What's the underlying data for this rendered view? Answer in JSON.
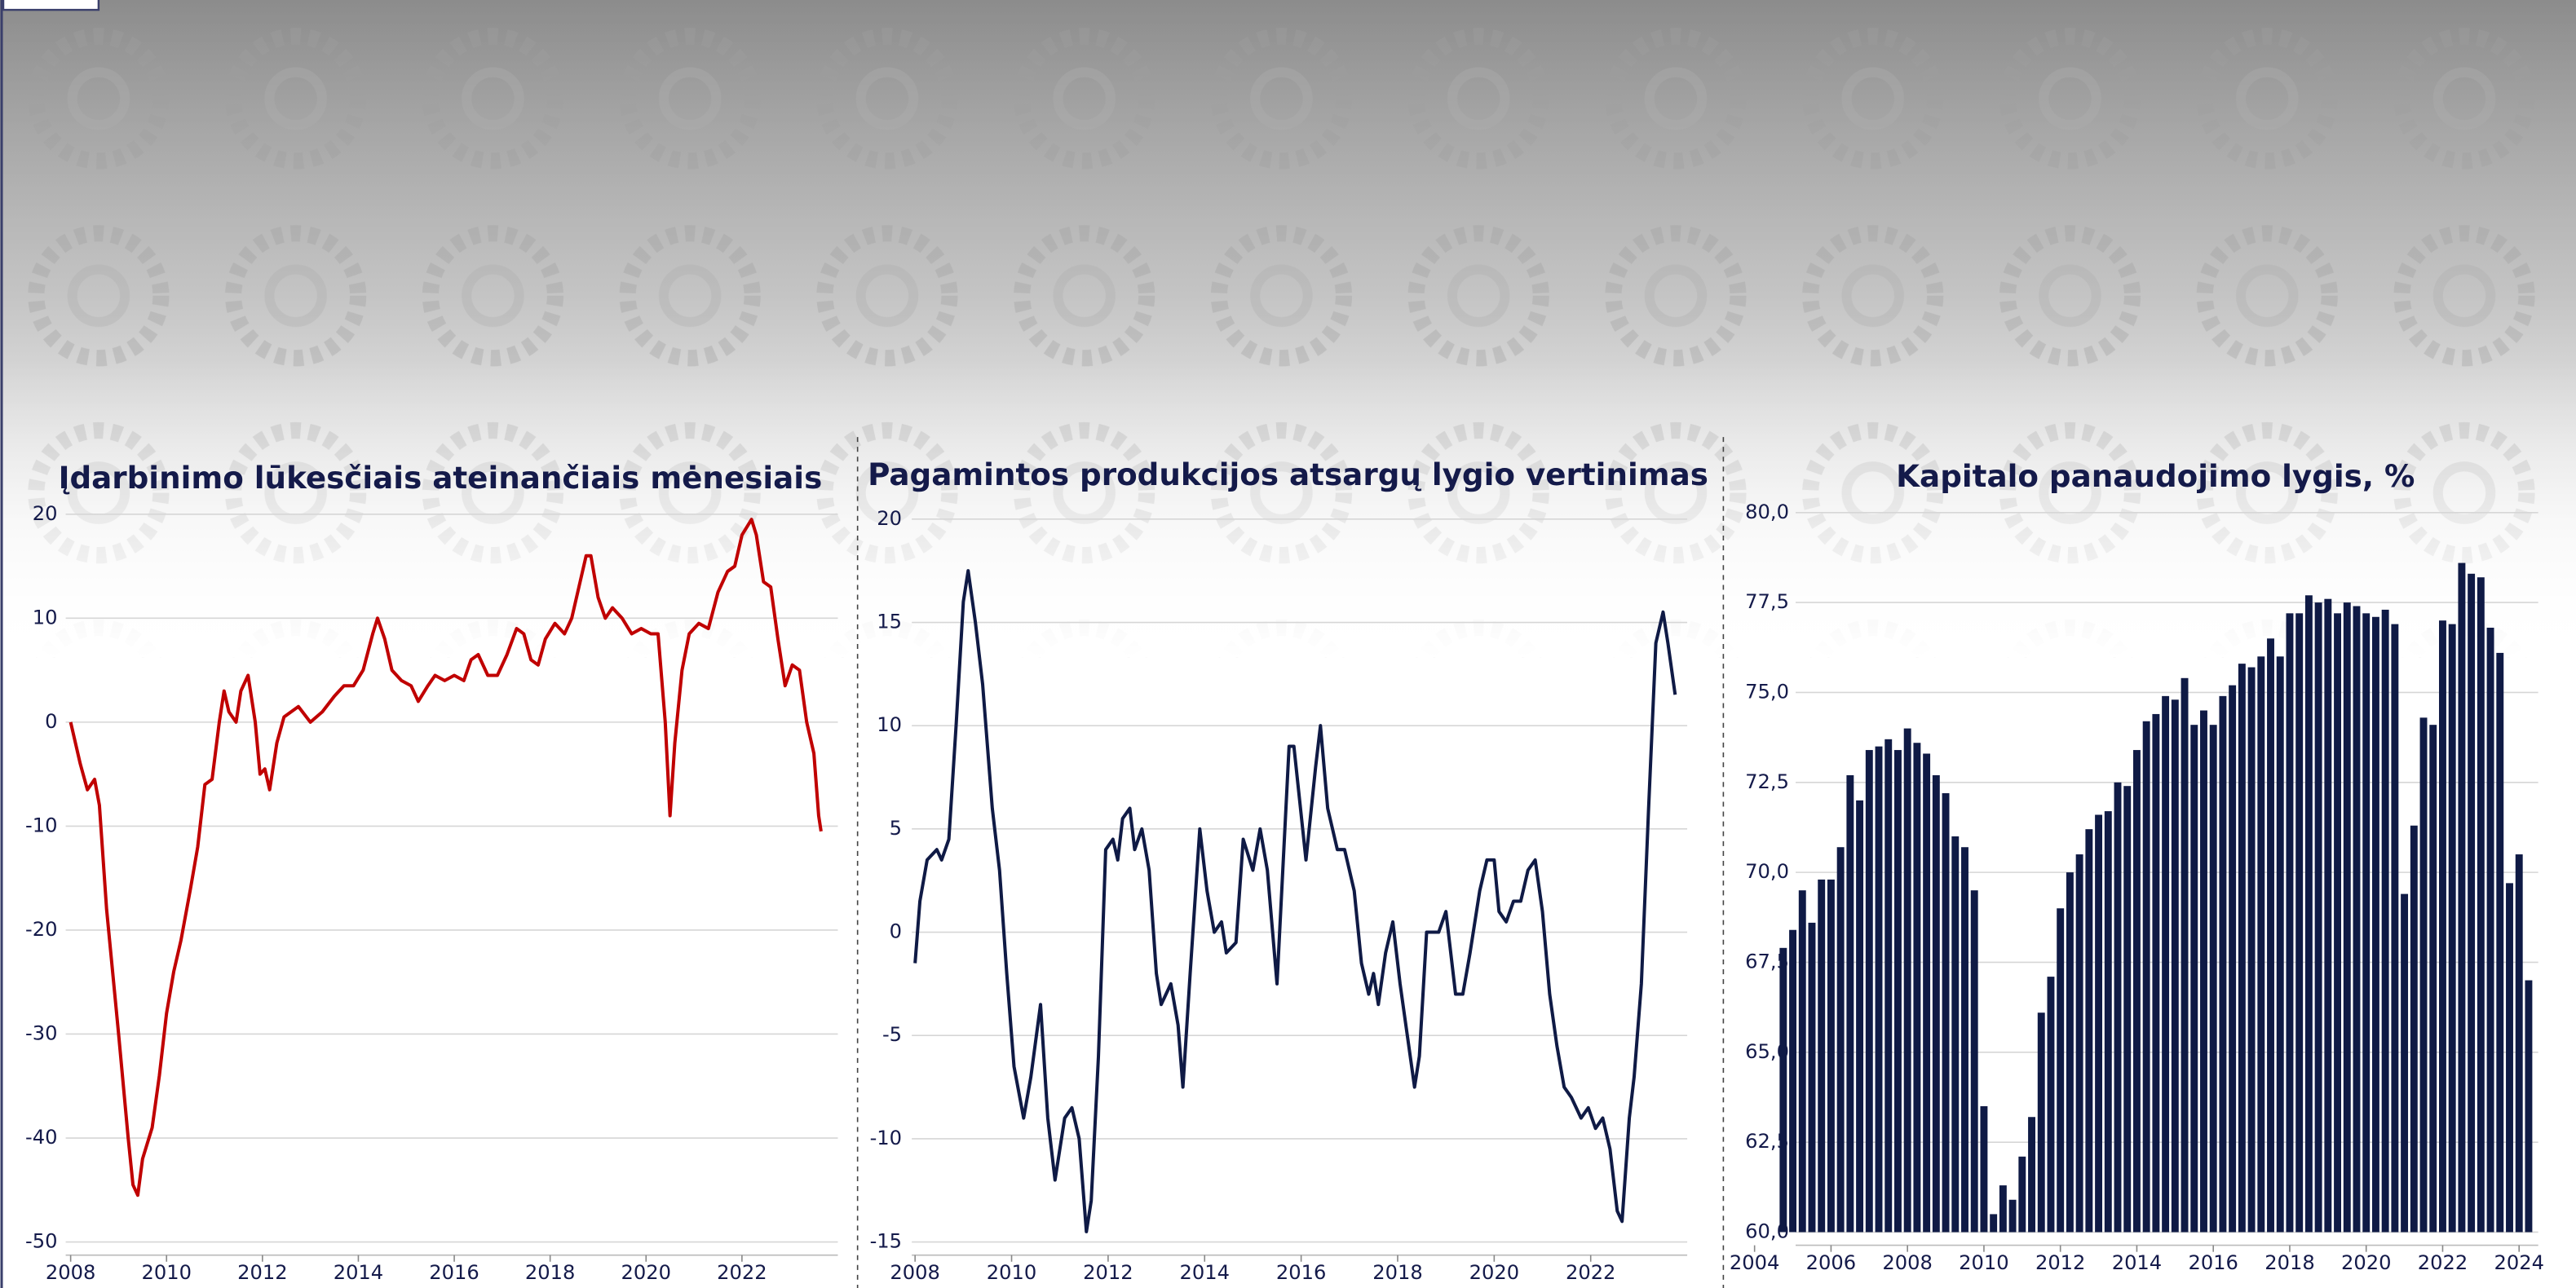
{
  "chart_data": [
    {
      "type": "line",
      "title": "Įdarbinimo lūkesčiais ateinančiais mėnesiais",
      "color": "#c00000",
      "grid": true,
      "x": [
        2008.0,
        2008.2,
        2008.35,
        2008.5,
        2008.6,
        2008.75,
        2009.0,
        2009.2,
        2009.3,
        2009.4,
        2009.5,
        2009.7,
        2009.85,
        2010.0,
        2010.15,
        2010.3,
        2010.5,
        2010.65,
        2010.8,
        2010.95,
        2011.1,
        2011.2,
        2011.3,
        2011.45,
        2011.55,
        2011.7,
        2011.85,
        2011.95,
        2012.05,
        2012.15,
        2012.3,
        2012.45,
        2012.6,
        2012.75,
        2013.0,
        2013.25,
        2013.5,
        2013.7,
        2013.9,
        2014.1,
        2014.3,
        2014.4,
        2014.55,
        2014.7,
        2014.9,
        2015.1,
        2015.25,
        2015.45,
        2015.6,
        2015.8,
        2016.0,
        2016.2,
        2016.35,
        2016.5,
        2016.7,
        2016.9,
        2017.1,
        2017.3,
        2017.45,
        2017.6,
        2017.75,
        2017.9,
        2018.1,
        2018.3,
        2018.45,
        2018.6,
        2018.75,
        2018.85,
        2019.0,
        2019.15,
        2019.3,
        2019.5,
        2019.7,
        2019.9,
        2020.1,
        2020.25,
        2020.4,
        2020.5,
        2020.6,
        2020.75,
        2020.9,
        2021.1,
        2021.3,
        2021.5,
        2021.7,
        2021.85,
        2022.0,
        2022.2,
        2022.3,
        2022.45,
        2022.6,
        2022.75,
        2022.9,
        2023.05,
        2023.2,
        2023.35,
        2023.5,
        2023.6,
        2023.65
      ],
      "values": [
        0,
        -4,
        -6.5,
        -5.5,
        -8,
        -18,
        -30,
        -40,
        -44.5,
        -45.5,
        -42,
        -39,
        -34,
        -28,
        -24,
        -21,
        -16,
        -12,
        -6,
        -5.5,
        0,
        3,
        1,
        0,
        3,
        4.5,
        0,
        -5,
        -4.5,
        -6.5,
        -2,
        0.5,
        1,
        1.5,
        0,
        1,
        2.5,
        3.5,
        3.5,
        5,
        8.5,
        10,
        8,
        5,
        4,
        3.5,
        2,
        3.5,
        4.5,
        4,
        4.5,
        4,
        6,
        6.5,
        4.5,
        4.5,
        6.5,
        9,
        8.5,
        6,
        5.5,
        8,
        9.5,
        8.5,
        10,
        13,
        16,
        16,
        12,
        10,
        11,
        10,
        8.5,
        9,
        8.5,
        8.5,
        0,
        -9,
        -2,
        5,
        8.5,
        9.5,
        9,
        12.5,
        14.5,
        15,
        18,
        19.5,
        18,
        13.5,
        13,
        8,
        3.5,
        5.5,
        5,
        0,
        -3,
        -9,
        -10.5
      ],
      "xlim": [
        2008,
        2024
      ],
      "xticks": [
        2008,
        2010,
        2012,
        2014,
        2016,
        2018,
        2020,
        2022
      ],
      "ylim": [
        -50,
        20
      ],
      "yticks": [
        -50,
        -40,
        -30,
        -20,
        -10,
        0,
        10,
        20
      ]
    },
    {
      "type": "line",
      "title": "Pagamintos produkcijos atsargų lygio vertinimas",
      "color": "#0f1a45",
      "grid": true,
      "x": [
        2008.0,
        2008.1,
        2008.25,
        2008.45,
        2008.55,
        2008.7,
        2008.85,
        2009.0,
        2009.1,
        2009.25,
        2009.4,
        2009.6,
        2009.75,
        2009.9,
        2010.05,
        2010.25,
        2010.4,
        2010.6,
        2010.75,
        2010.9,
        2011.1,
        2011.25,
        2011.4,
        2011.55,
        2011.65,
        2011.8,
        2011.95,
        2012.1,
        2012.2,
        2012.3,
        2012.45,
        2012.55,
        2012.7,
        2012.85,
        2013.0,
        2013.1,
        2013.3,
        2013.45,
        2013.55,
        2013.7,
        2013.9,
        2014.05,
        2014.2,
        2014.35,
        2014.45,
        2014.65,
        2014.8,
        2015.0,
        2015.15,
        2015.3,
        2015.5,
        2015.75,
        2015.85,
        2016.1,
        2016.3,
        2016.4,
        2016.55,
        2016.75,
        2016.9,
        2017.1,
        2017.25,
        2017.4,
        2017.5,
        2017.6,
        2017.75,
        2017.9,
        2018.05,
        2018.2,
        2018.35,
        2018.45,
        2018.6,
        2018.7,
        2018.85,
        2019.0,
        2019.2,
        2019.35,
        2019.5,
        2019.7,
        2019.85,
        2020.0,
        2020.1,
        2020.25,
        2020.4,
        2020.55,
        2020.7,
        2020.85,
        2021.0,
        2021.15,
        2021.3,
        2021.45,
        2021.6,
        2021.7,
        2021.8,
        2021.95,
        2022.1,
        2022.25,
        2022.4,
        2022.55,
        2022.65,
        2022.8,
        2022.9,
        2023.05,
        2023.2,
        2023.35,
        2023.5,
        2023.6,
        2023.75
      ],
      "values": [
        -1.5,
        1.5,
        3.5,
        4,
        3.5,
        4.5,
        10,
        16,
        17.5,
        15,
        12,
        6,
        3,
        -2,
        -6.5,
        -9,
        -7,
        -3.5,
        -9,
        -12,
        -9,
        -8.5,
        -10,
        -14.5,
        -13,
        -6,
        4,
        4.5,
        3.5,
        5.5,
        6,
        4,
        5,
        3,
        -2,
        -3.5,
        -2.5,
        -4.5,
        -7.5,
        -2,
        5,
        2,
        0,
        0.5,
        -1,
        -0.5,
        4.5,
        3,
        5,
        3,
        -2.5,
        9,
        9,
        3.5,
        8,
        10,
        6,
        4,
        4,
        2,
        -1.5,
        -3,
        -2,
        -3.5,
        -1,
        0.5,
        -2.5,
        -5,
        -7.5,
        -6,
        0,
        0,
        0,
        1,
        -3,
        -3,
        -1,
        2,
        3.5,
        3.5,
        1,
        0.5,
        1.5,
        1.5,
        3,
        3.5,
        1,
        -3,
        -5.5,
        -7.5,
        -8,
        -8.5,
        -9,
        -8.5,
        -9.5,
        -9,
        -10.5,
        -13.5,
        -14,
        -9,
        -7,
        -2.5,
        6,
        14,
        15.5,
        14,
        11.5
      ],
      "xlim": [
        2008,
        2024
      ],
      "xticks": [
        2008,
        2010,
        2012,
        2014,
        2016,
        2018,
        2020,
        2022
      ],
      "ylim": [
        -15,
        20
      ],
      "yticks": [
        -15,
        -10,
        -5,
        0,
        5,
        10,
        15,
        20
      ]
    },
    {
      "type": "bar",
      "title": "Kapitalo panaudojimo lygis, %",
      "color": "#0f1a45",
      "grid": true,
      "x": [
        2004.75,
        2005,
        2005.25,
        2005.5,
        2005.75,
        2006,
        2006.25,
        2006.5,
        2006.75,
        2007,
        2007.25,
        2007.5,
        2007.75,
        2008,
        2008.25,
        2008.5,
        2008.75,
        2009,
        2009.25,
        2009.5,
        2009.75,
        2010,
        2010.25,
        2010.5,
        2010.75,
        2011,
        2011.25,
        2011.5,
        2011.75,
        2012,
        2012.25,
        2012.5,
        2012.75,
        2013,
        2013.25,
        2013.5,
        2013.75,
        2014,
        2014.25,
        2014.5,
        2014.75,
        2015,
        2015.25,
        2015.5,
        2015.75,
        2016,
        2016.25,
        2016.5,
        2016.75,
        2017,
        2017.25,
        2017.5,
        2017.75,
        2018,
        2018.25,
        2018.5,
        2018.75,
        2019,
        2019.25,
        2019.5,
        2019.75,
        2020,
        2020.25,
        2020.5,
        2020.75,
        2021,
        2021.25,
        2021.5,
        2021.75,
        2022,
        2022.25,
        2022.5,
        2022.75,
        2023,
        2023.25,
        2023.5,
        2023.75,
        2024,
        2024.25
      ],
      "values": [
        67.9,
        68.4,
        69.5,
        68.6,
        69.8,
        69.8,
        70.7,
        72.7,
        72.0,
        73.4,
        73.5,
        73.7,
        73.4,
        74.0,
        73.6,
        73.3,
        72.7,
        72.2,
        71.0,
        70.7,
        69.5,
        63.5,
        60.5,
        61.3,
        60.9,
        62.1,
        63.2,
        66.1,
        67.1,
        69.0,
        70.0,
        70.5,
        71.2,
        71.6,
        71.7,
        72.5,
        72.4,
        73.4,
        74.2,
        74.4,
        74.9,
        74.8,
        75.4,
        74.1,
        74.5,
        74.1,
        74.9,
        75.2,
        75.8,
        75.7,
        76.0,
        76.5,
        76.0,
        77.2,
        77.2,
        77.7,
        77.5,
        77.6,
        77.2,
        77.5,
        77.4,
        77.2,
        77.1,
        77.3,
        76.9,
        69.4,
        71.3,
        74.3,
        74.1,
        77.0,
        76.9,
        78.6,
        78.3,
        78.2,
        76.8,
        76.1,
        69.7,
        70.5,
        67.0
      ],
      "xlim": [
        2004,
        2024.5
      ],
      "xticks": [
        2004,
        2006,
        2008,
        2010,
        2012,
        2014,
        2016,
        2018,
        2020,
        2022,
        2024
      ],
      "ylim": [
        60,
        80
      ],
      "yticks": [
        {
          "value": 60,
          "label": "60,0"
        },
        {
          "value": 62.5,
          "label": "62,5"
        },
        {
          "value": 65,
          "label": "65,0"
        },
        {
          "value": 67.5,
          "label": "67,5"
        },
        {
          "value": 70,
          "label": "70,0"
        },
        {
          "value": 72.5,
          "label": "72,5"
        },
        {
          "value": 75,
          "label": "75,0"
        },
        {
          "value": 77.5,
          "label": "77,5"
        },
        {
          "value": 80,
          "label": "80,0"
        }
      ]
    }
  ]
}
